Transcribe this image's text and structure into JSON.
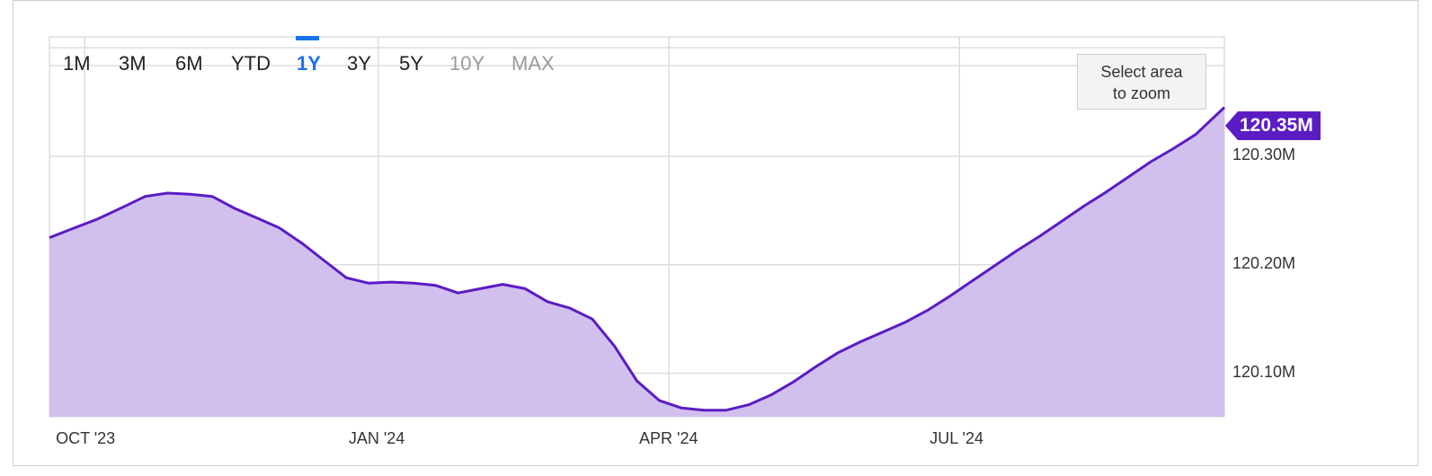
{
  "range_selector": {
    "buttons": [
      {
        "label": "1M",
        "state": "normal"
      },
      {
        "label": "3M",
        "state": "normal"
      },
      {
        "label": "6M",
        "state": "normal"
      },
      {
        "label": "YTD",
        "state": "normal"
      },
      {
        "label": "1Y",
        "state": "active"
      },
      {
        "label": "3Y",
        "state": "normal"
      },
      {
        "label": "5Y",
        "state": "normal"
      },
      {
        "label": "10Y",
        "state": "disabled"
      },
      {
        "label": "MAX",
        "state": "disabled"
      }
    ]
  },
  "zoom_hint": {
    "line1": "Select area",
    "line2": "to zoom"
  },
  "colors": {
    "line": "#5b1cc4",
    "fill": "#cfbdec",
    "grid": "#dddddd",
    "active_range": "#1a73e8",
    "badge": "#5b1cc4"
  },
  "chart_data": {
    "type": "area",
    "title": "",
    "xlabel": "",
    "ylabel": "",
    "ylim": [
      120.06,
      120.41
    ],
    "xlim": [
      "2023-09-20",
      "2024-09-22"
    ],
    "x_ticks": [
      {
        "date": "2023-10-01",
        "label": "OCT '23"
      },
      {
        "date": "2024-01-01",
        "label": "JAN '24"
      },
      {
        "date": "2024-04-01",
        "label": "APR '24"
      },
      {
        "date": "2024-07-01",
        "label": "JUL '24"
      }
    ],
    "y_ticks": [
      {
        "value": 120.1,
        "label": "120.10M"
      },
      {
        "value": 120.2,
        "label": "120.20M"
      },
      {
        "value": 120.3,
        "label": "120.30M"
      }
    ],
    "grid": true,
    "last_value_label": "120.35M",
    "series": [
      {
        "x": [
          "2023-09-20",
          "2023-09-27",
          "2023-10-05",
          "2023-10-13",
          "2023-10-20",
          "2023-10-27",
          "2023-11-03",
          "2023-11-10",
          "2023-11-17",
          "2023-11-24",
          "2023-12-01",
          "2023-12-08",
          "2023-12-15",
          "2023-12-22",
          "2023-12-29",
          "2024-01-05",
          "2024-01-12",
          "2024-01-19",
          "2024-01-26",
          "2024-02-02",
          "2024-02-09",
          "2024-02-16",
          "2024-02-23",
          "2024-03-01",
          "2024-03-08",
          "2024-03-15",
          "2024-03-22",
          "2024-03-29",
          "2024-04-05",
          "2024-04-12",
          "2024-04-19",
          "2024-04-26",
          "2024-05-03",
          "2024-05-10",
          "2024-05-17",
          "2024-05-24",
          "2024-05-31",
          "2024-06-07",
          "2024-06-14",
          "2024-06-21",
          "2024-06-28",
          "2024-07-05",
          "2024-07-12",
          "2024-07-19",
          "2024-07-26",
          "2024-08-02",
          "2024-08-09",
          "2024-08-16",
          "2024-08-23",
          "2024-08-30",
          "2024-09-06",
          "2024-09-13",
          "2024-09-22"
        ],
        "values": [
          120.225,
          120.233,
          120.242,
          120.253,
          120.263,
          120.266,
          120.265,
          120.263,
          120.252,
          120.243,
          120.234,
          120.22,
          120.204,
          120.188,
          120.183,
          120.184,
          120.183,
          120.181,
          120.174,
          120.178,
          120.182,
          120.178,
          120.166,
          120.16,
          120.15,
          120.125,
          120.093,
          120.075,
          120.068,
          120.066,
          120.066,
          120.071,
          120.08,
          120.092,
          120.106,
          120.119,
          120.129,
          120.138,
          120.147,
          120.158,
          120.171,
          120.185,
          120.199,
          120.213,
          120.226,
          120.24,
          120.254,
          120.267,
          120.281,
          120.295,
          120.307,
          120.32,
          120.345
        ]
      }
    ]
  }
}
